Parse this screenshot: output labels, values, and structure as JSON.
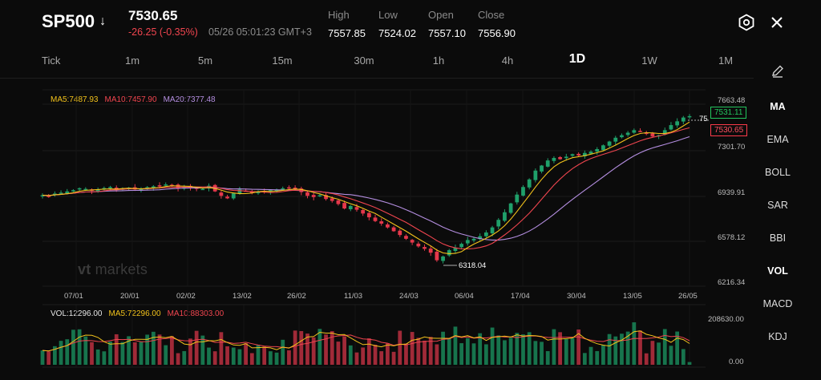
{
  "header": {
    "symbol": "SP500",
    "price": "7530.65",
    "change": "-26.25 (-0.35%)",
    "timestamp": "05/26 05:01:23 GMT+3",
    "stats": [
      {
        "label": "High",
        "value": "7557.85"
      },
      {
        "label": "Low",
        "value": "7524.02"
      },
      {
        "label": "Open",
        "value": "7557.10"
      },
      {
        "label": "Close",
        "value": "7556.90"
      }
    ]
  },
  "timeframes": [
    "Tick",
    "1m",
    "5m",
    "15m",
    "30m",
    "1h",
    "4h",
    "1D",
    "1W",
    "1M"
  ],
  "active_timeframe": "1D",
  "indicators": [
    "MA",
    "EMA",
    "BOLL",
    "SAR",
    "BBI",
    "VOL",
    "MACD",
    "KDJ"
  ],
  "bold_indicators": [
    "MA",
    "VOL"
  ],
  "ma_legend": {
    "ma5": "MA5:7487.93",
    "ma10": "MA10:7457.90",
    "ma20": "MA20:7377.48"
  },
  "vol_legend": {
    "vol": "VOL:12296.00",
    "ma5": "MA5:72296.00",
    "ma10": "MA10:88303.00"
  },
  "price_axis": [
    "7663.48",
    "7301.70",
    "6939.91",
    "6578.12",
    "6216.34"
  ],
  "vol_axis": [
    "208630.00",
    "0.00"
  ],
  "date_axis": [
    "07/01",
    "20/01",
    "02/02",
    "13/02",
    "26/02",
    "11/03",
    "24/03",
    "06/04",
    "17/04",
    "30/04",
    "13/05",
    "26/05"
  ],
  "price_tags": {
    "current_green": "7531.11",
    "current_red": "7530.65",
    "high_marker": "75",
    "low_marker": "6318.04"
  },
  "watermark": {
    "brand": "vt",
    "rest": "markets"
  },
  "colors": {
    "up": "#1fa06a",
    "down": "#e5384b",
    "ma5": "#f2c21b",
    "ma10": "#f0454f",
    "ma20": "#b48ee0",
    "background": "#0b0b0b"
  },
  "chart_data": {
    "type": "candlestick",
    "price_range": [
      6216.34,
      7663.48
    ],
    "volume_range": [
      0,
      208630
    ],
    "candles_close": [
      6905,
      6900,
      6918,
      6925,
      6935,
      6945,
      6960,
      6955,
      6940,
      6950,
      6962,
      6970,
      6945,
      6960,
      6965,
      6950,
      6955,
      6968,
      6975,
      6980,
      6990,
      6985,
      6960,
      6970,
      6965,
      6958,
      6955,
      6980,
      6935,
      6900,
      6880,
      6920,
      6950,
      6940,
      6925,
      6930,
      6935,
      6945,
      6950,
      6960,
      6958,
      6955,
      6930,
      6900,
      6890,
      6905,
      6875,
      6860,
      6835,
      6800,
      6820,
      6790,
      6760,
      6730,
      6700,
      6680,
      6650,
      6620,
      6590,
      6560,
      6530,
      6500,
      6480,
      6450,
      6390,
      6420,
      6470,
      6490,
      6520,
      6550,
      6560,
      6580,
      6610,
      6650,
      6710,
      6770,
      6840,
      6910,
      6970,
      7030,
      7100,
      7140,
      7180,
      7200,
      7190,
      7210,
      7230,
      7220,
      7240,
      7250,
      7270,
      7300,
      7330,
      7360,
      7380,
      7400,
      7420,
      7410,
      7390,
      7370,
      7380,
      7420,
      7460,
      7490,
      7520,
      7531
    ],
    "moving_averages_shown": [
      "MA5",
      "MA10",
      "MA20"
    ]
  }
}
